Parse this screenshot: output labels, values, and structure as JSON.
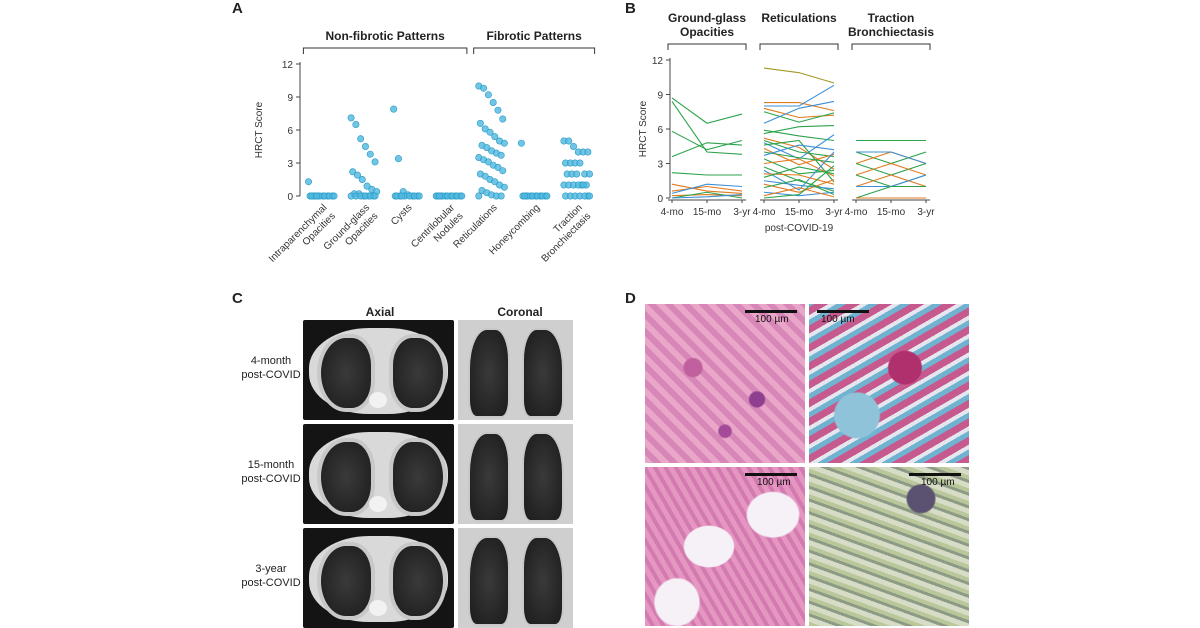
{
  "panels": {
    "a": "A",
    "b": "B",
    "c": "C",
    "d": "D"
  },
  "chart_data": [
    {
      "type": "scatter",
      "ylabel": "HRCT Score",
      "ylim": [
        0,
        12
      ],
      "yticks": [
        "0",
        "3",
        "6",
        "9",
        "12"
      ],
      "groups": [
        {
          "label": "Non-fibrotic Patterns",
          "from": 0,
          "to": 3
        },
        {
          "label": "Fibrotic Patterns",
          "from": 4,
          "to": 6
        }
      ],
      "categories": [
        [
          "Intraparenchymal",
          "Opacities"
        ],
        [
          "Ground-glass",
          "Opacities"
        ],
        [
          "Cysts"
        ],
        [
          "Centrilobular",
          "Nodules"
        ],
        [
          "Reticulations"
        ],
        [
          "Honeycombing"
        ],
        [
          "Traction",
          "Bronchiectasis"
        ]
      ],
      "points": [
        [
          1.3,
          0,
          0,
          0,
          0,
          0,
          0,
          0,
          0,
          0,
          0,
          0,
          0,
          0
        ],
        [
          7.1,
          6.5,
          5.2,
          4.5,
          3.8,
          3.1,
          2.2,
          1.9,
          1.5,
          0.9,
          0.6,
          0.4,
          0.2,
          0.2,
          0,
          0,
          0,
          0,
          0,
          0,
          0,
          0,
          0
        ],
        [
          7.9,
          3.4,
          0.4,
          0.1,
          0,
          0,
          0,
          0,
          0,
          0,
          0,
          0,
          0,
          0
        ],
        [
          0,
          0,
          0,
          0,
          0,
          0,
          0,
          0,
          0,
          0,
          0,
          0,
          0
        ],
        [
          10,
          9.8,
          9.2,
          8.5,
          7.8,
          7.0,
          6.6,
          6.1,
          5.8,
          5.4,
          5.0,
          4.8,
          4.6,
          4.4,
          4.1,
          3.9,
          3.7,
          3.5,
          3.3,
          3.1,
          2.8,
          2.6,
          2.3,
          2.0,
          1.8,
          1.5,
          1.3,
          1.0,
          0.8,
          0.5,
          0.3,
          0.1,
          0,
          0,
          0
        ],
        [
          4.8,
          0,
          0,
          0,
          0,
          0,
          0,
          0,
          0,
          0,
          0,
          0,
          0
        ],
        [
          5.0,
          5.0,
          4.5,
          4.0,
          4.0,
          4.0,
          3.0,
          3.0,
          3.0,
          3.0,
          2.0,
          2.0,
          2.0,
          2.0,
          2.0,
          1.0,
          1.0,
          1.0,
          1.0,
          1.0,
          1.0,
          1.0,
          0,
          0,
          0,
          0,
          0,
          0,
          0
        ]
      ]
    },
    {
      "type": "line",
      "ylabel": "HRCT Score",
      "xlabel": "post-COVID-19",
      "ylim": [
        0,
        12
      ],
      "yticks": [
        "0",
        "3",
        "6",
        "9",
        "12"
      ],
      "timepoints": [
        "4-mo",
        "15-mo",
        "3-yr"
      ],
      "series_colors": {
        "green": "#2ba34a",
        "orange": "#e07b1f",
        "blue": "#3d8fd6",
        "olive": "#a09a23"
      },
      "facets": [
        {
          "title": [
            "Ground-glass",
            "Opacities"
          ],
          "lines": [
            {
              "c": "green",
              "v": [
                8.7,
                6.5,
                7.3
              ]
            },
            {
              "c": "green",
              "v": [
                8.4,
                4.0,
                3.8
              ]
            },
            {
              "c": "green",
              "v": [
                5.8,
                4.2,
                5.0
              ]
            },
            {
              "c": "green",
              "v": [
                3.6,
                4.8,
                4.6
              ]
            },
            {
              "c": "green",
              "v": [
                2.2,
                2.0,
                2.0
              ]
            },
            {
              "c": "orange",
              "v": [
                1.2,
                0.6,
                0.4
              ]
            },
            {
              "c": "orange",
              "v": [
                0.6,
                1.0,
                0.6
              ]
            },
            {
              "c": "blue",
              "v": [
                0.4,
                1.2,
                1.0
              ]
            },
            {
              "c": "orange",
              "v": [
                0.2,
                0.3,
                0.2
              ]
            },
            {
              "c": "green",
              "v": [
                0,
                0.5,
                0
              ]
            },
            {
              "c": "blue",
              "v": [
                0,
                0.1,
                0.3
              ]
            }
          ]
        },
        {
          "title": [
            "Reticulations"
          ],
          "lines": [
            {
              "c": "olive",
              "v": [
                11.3,
                10.9,
                10.0
              ]
            },
            {
              "c": "orange",
              "v": [
                8.3,
                8.3,
                7.6
              ]
            },
            {
              "c": "blue",
              "v": [
                8.0,
                8.0,
                9.8
              ]
            },
            {
              "c": "orange",
              "v": [
                7.8,
                7.0,
                7.2
              ]
            },
            {
              "c": "green",
              "v": [
                7.5,
                6.6,
                7.4
              ]
            },
            {
              "c": "blue",
              "v": [
                6.5,
                7.8,
                8.4
              ]
            },
            {
              "c": "green",
              "v": [
                5.9,
                5.4,
                5.0
              ]
            },
            {
              "c": "green",
              "v": [
                5.6,
                6.2,
                6.3
              ]
            },
            {
              "c": "orange",
              "v": [
                5.2,
                4.4,
                2.5
              ]
            },
            {
              "c": "green",
              "v": [
                5.0,
                4.0,
                3.6
              ]
            },
            {
              "c": "blue",
              "v": [
                4.8,
                3.4,
                5.5
              ]
            },
            {
              "c": "green",
              "v": [
                4.6,
                5.0,
                1.4
              ]
            },
            {
              "c": "orange",
              "v": [
                4.3,
                2.9,
                3.8
              ]
            },
            {
              "c": "green",
              "v": [
                4.0,
                3.5,
                3.1
              ]
            },
            {
              "c": "blue",
              "v": [
                3.7,
                4.6,
                4.2
              ]
            },
            {
              "c": "green",
              "v": [
                3.4,
                2.1,
                2.4
              ]
            },
            {
              "c": "orange",
              "v": [
                3.0,
                3.4,
                1.9
              ]
            },
            {
              "c": "green",
              "v": [
                2.7,
                1.5,
                0.6
              ]
            },
            {
              "c": "blue",
              "v": [
                2.4,
                0.7,
                4.0
              ]
            },
            {
              "c": "orange",
              "v": [
                2.1,
                2.0,
                1.2
              ]
            },
            {
              "c": "green",
              "v": [
                1.8,
                2.7,
                2.1
              ]
            },
            {
              "c": "blue",
              "v": [
                1.5,
                1.1,
                0.8
              ]
            },
            {
              "c": "orange",
              "v": [
                1.2,
                0.5,
                1.6
              ]
            },
            {
              "c": "green",
              "v": [
                0.9,
                1.6,
                0.3
              ]
            },
            {
              "c": "blue",
              "v": [
                0.5,
                0.2,
                0.5
              ]
            },
            {
              "c": "orange",
              "v": [
                0.2,
                0.9,
                0.1
              ]
            },
            {
              "c": "green",
              "v": [
                0,
                0.3,
                2.8
              ]
            }
          ]
        },
        {
          "title": [
            "Traction",
            "Bronchiectasis"
          ],
          "lines": [
            {
              "c": "green",
              "v": [
                5.0,
                5.0,
                5.0
              ]
            },
            {
              "c": "green",
              "v": [
                4.0,
                3.0,
                4.0
              ]
            },
            {
              "c": "orange",
              "v": [
                3.0,
                4.0,
                3.0
              ]
            },
            {
              "c": "blue",
              "v": [
                4.0,
                4.0,
                3.0
              ]
            },
            {
              "c": "green",
              "v": [
                3.0,
                2.0,
                3.0
              ]
            },
            {
              "c": "orange",
              "v": [
                2.0,
                3.0,
                2.0
              ]
            },
            {
              "c": "green",
              "v": [
                2.0,
                1.0,
                2.0
              ]
            },
            {
              "c": "orange",
              "v": [
                1.0,
                2.0,
                1.0
              ]
            },
            {
              "c": "blue",
              "v": [
                1.0,
                1.0,
                2.0
              ]
            },
            {
              "c": "green",
              "v": [
                0,
                1.0,
                1.0
              ]
            },
            {
              "c": "orange",
              "v": [
                0,
                0,
                0
              ]
            }
          ]
        }
      ]
    }
  ],
  "panel_c": {
    "col_headers": [
      "Axial",
      "Coronal"
    ],
    "rows": [
      [
        "4-month",
        "post-COVID"
      ],
      [
        "15-month",
        "post-COVID"
      ],
      [
        "3-year",
        "post-COVID"
      ]
    ]
  },
  "panel_d": {
    "scale_label": "100 µm"
  }
}
